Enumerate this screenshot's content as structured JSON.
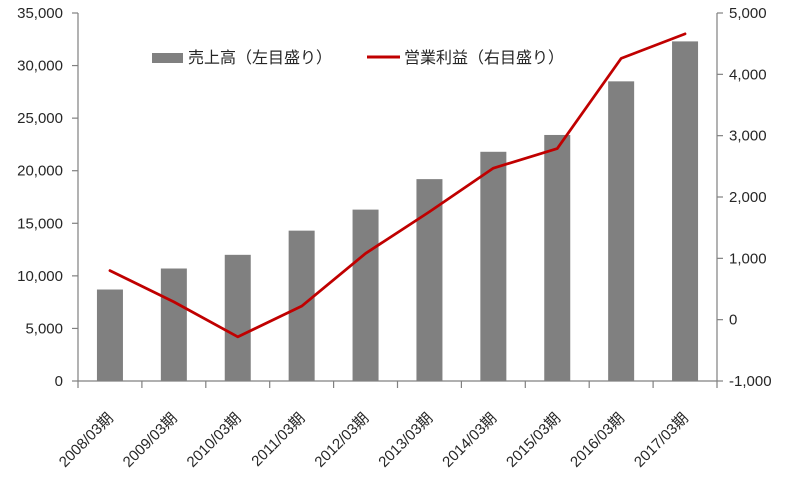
{
  "chart": {
    "background": "#ffffff",
    "text_color": "#262626",
    "axis_color": "#808080"
  },
  "chart_data": {
    "type": "combo",
    "categories": [
      "2008/03期",
      "2009/03期",
      "2010/03期",
      "2011/03期",
      "2012/03期",
      "2013/03期",
      "2014/03期",
      "2015/03期",
      "2016/03期",
      "2017/03期"
    ],
    "series": [
      {
        "name": "売上高（左目盛り）",
        "type": "bar",
        "axis": "left",
        "color": "#808080",
        "values": [
          8700,
          10700,
          12000,
          14300,
          16300,
          19200,
          21800,
          23400,
          28500,
          32300
        ]
      },
      {
        "name": "営業利益（右目盛り）",
        "type": "line",
        "axis": "right",
        "color": "#C00000",
        "values": [
          800,
          290,
          -280,
          220,
          1080,
          1760,
          2470,
          2790,
          4260,
          4660
        ]
      }
    ],
    "axis_left": {
      "min": 0,
      "max": 35000,
      "step": 5000,
      "tick_labels": [
        "0",
        "5,000",
        "10,000",
        "15,000",
        "20,000",
        "25,000",
        "30,000",
        "35,000"
      ]
    },
    "axis_right": {
      "min": -1000,
      "max": 5000,
      "step": 1000,
      "tick_labels": [
        "-1,000",
        "0",
        "1,000",
        "2,000",
        "3,000",
        "4,000",
        "5,000"
      ]
    },
    "legend": {
      "position": "top-inside"
    },
    "grid": false,
    "x_label_rotation": -45
  }
}
